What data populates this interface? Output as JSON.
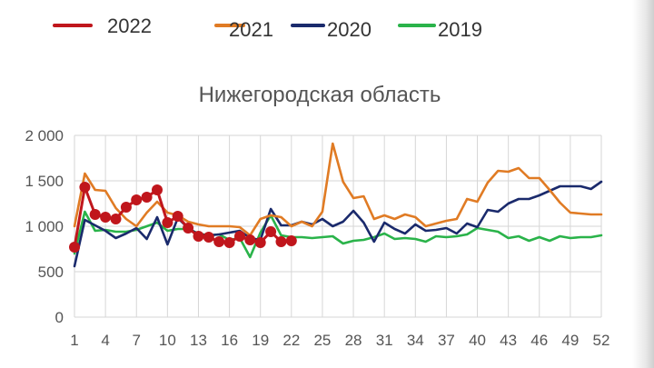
{
  "chart_data": {
    "type": "line",
    "title": "Нижегородская область",
    "xlabel": "",
    "ylabel": "",
    "xlim": [
      1,
      52
    ],
    "ylim": [
      0,
      2000
    ],
    "x_ticks": [
      1,
      4,
      7,
      10,
      13,
      16,
      19,
      22,
      25,
      28,
      31,
      34,
      37,
      40,
      43,
      46,
      49,
      52
    ],
    "y_ticks": [
      0,
      500,
      1000,
      1500,
      2000
    ],
    "y_tick_labels": [
      "0",
      "500",
      "1 000",
      "1 500",
      "2 000"
    ],
    "grid": "vertical and horizontal",
    "legend_position": "top",
    "series": [
      {
        "name": "2022",
        "color": "#c0161c",
        "markers": true,
        "x": [
          1,
          2,
          3,
          4,
          5,
          6,
          7,
          8,
          9,
          10,
          11,
          12,
          13,
          14,
          15,
          16,
          17,
          18,
          19,
          20,
          21,
          22
        ],
        "values": [
          770,
          1430,
          1130,
          1100,
          1080,
          1210,
          1290,
          1320,
          1400,
          1040,
          1110,
          980,
          890,
          880,
          830,
          820,
          890,
          850,
          820,
          940,
          830,
          840
        ]
      },
      {
        "name": "2021",
        "color": "#e07b24",
        "markers": false,
        "x": [
          1,
          2,
          3,
          4,
          5,
          6,
          7,
          8,
          9,
          10,
          11,
          12,
          13,
          14,
          15,
          16,
          17,
          18,
          19,
          20,
          21,
          22,
          23,
          24,
          25,
          26,
          27,
          28,
          29,
          30,
          31,
          32,
          33,
          34,
          35,
          36,
          37,
          38,
          39,
          40,
          41,
          42,
          43,
          44,
          45,
          46,
          47,
          48,
          49,
          50,
          51,
          52
        ],
        "values": [
          1000,
          1580,
          1400,
          1390,
          1200,
          1080,
          1000,
          1150,
          1270,
          1150,
          1120,
          1050,
          1020,
          1000,
          1000,
          1000,
          990,
          900,
          1080,
          1120,
          1100,
          1000,
          1050,
          1000,
          1160,
          1910,
          1490,
          1310,
          1330,
          1080,
          1120,
          1080,
          1130,
          1100,
          1000,
          1030,
          1060,
          1080,
          1300,
          1270,
          1480,
          1610,
          1600,
          1640,
          1530,
          1530,
          1400,
          1260,
          1150,
          1140,
          1130,
          1130
        ]
      },
      {
        "name": "2020",
        "color": "#1a2a6c",
        "markers": false,
        "x": [
          1,
          2,
          3,
          4,
          5,
          6,
          7,
          8,
          9,
          10,
          11,
          12,
          13,
          14,
          15,
          16,
          17,
          18,
          19,
          20,
          21,
          22,
          23,
          24,
          25,
          26,
          27,
          28,
          29,
          30,
          31,
          32,
          33,
          34,
          35,
          36,
          37,
          38,
          39,
          40,
          41,
          42,
          43,
          44,
          45,
          46,
          47,
          48,
          49,
          50,
          51,
          52
        ],
        "values": [
          560,
          1070,
          1010,
          950,
          870,
          920,
          980,
          860,
          1100,
          800,
          1090,
          980,
          910,
          900,
          910,
          930,
          950,
          870,
          850,
          1190,
          1010,
          1010,
          1050,
          1020,
          1080,
          1000,
          1050,
          1170,
          1040,
          830,
          1040,
          970,
          920,
          1020,
          950,
          960,
          980,
          920,
          1030,
          990,
          1180,
          1160,
          1250,
          1300,
          1300,
          1340,
          1390,
          1440,
          1440,
          1440,
          1410,
          1490
        ]
      },
      {
        "name": "2019",
        "color": "#2ab34a",
        "markers": false,
        "x": [
          1,
          2,
          3,
          4,
          5,
          6,
          7,
          8,
          9,
          10,
          11,
          12,
          13,
          14,
          15,
          16,
          17,
          18,
          19,
          20,
          21,
          22,
          23,
          24,
          25,
          26,
          27,
          28,
          29,
          30,
          31,
          32,
          33,
          34,
          35,
          36,
          37,
          38,
          39,
          40,
          41,
          42,
          43,
          44,
          45,
          46,
          47,
          48,
          49,
          50,
          51,
          52
        ],
        "values": [
          700,
          1160,
          950,
          960,
          940,
          940,
          960,
          1000,
          1040,
          950,
          970,
          970,
          920,
          900,
          910,
          850,
          870,
          660,
          930,
          1120,
          900,
          880,
          880,
          870,
          880,
          890,
          810,
          840,
          850,
          880,
          920,
          860,
          870,
          860,
          830,
          890,
          880,
          890,
          910,
          980,
          960,
          940,
          870,
          890,
          840,
          880,
          840,
          890,
          870,
          880,
          880,
          900
        ]
      }
    ]
  }
}
